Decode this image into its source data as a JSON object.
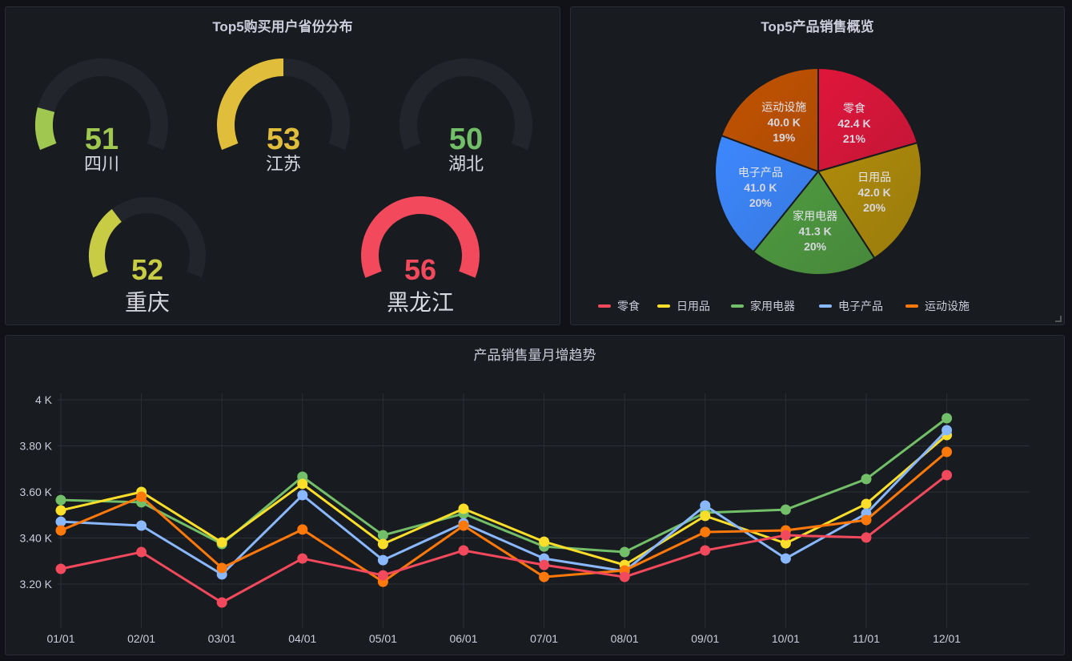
{
  "gauge_panel": {
    "title": "Top5购买用户省份分布",
    "min": 50,
    "max": 56,
    "gauges": [
      {
        "label": "四川",
        "value": "51",
        "color": "#a0c851"
      },
      {
        "label": "江苏",
        "value": "53",
        "color": "#e0bd3a"
      },
      {
        "label": "湖北",
        "value": "50",
        "color": "#73bf69"
      },
      {
        "label": "重庆",
        "value": "52",
        "color": "#c8cc45"
      },
      {
        "label": "黑龙江",
        "value": "56",
        "color": "#f2495c"
      }
    ]
  },
  "pie_panel": {
    "title": "Top5产品销售概览",
    "chart_data": {
      "type": "pie",
      "title": "Top5产品销售概览",
      "slices": [
        {
          "label": "零食",
          "value": 42400,
          "display": "42.4 K",
          "percent": "21%",
          "color": "#f2495c",
          "fill": "#e0163b"
        },
        {
          "label": "日用品",
          "value": 42000,
          "display": "42.0 K",
          "percent": "20%",
          "color": "#fade2a",
          "fill": "#b08c0a"
        },
        {
          "label": "家用电器",
          "value": 41300,
          "display": "41.3 K",
          "percent": "20%",
          "color": "#73bf69",
          "fill": "#4f9b40"
        },
        {
          "label": "电子产品",
          "value": 41000,
          "display": "41.0 K",
          "percent": "20%",
          "color": "#8ab8ff",
          "fill": "#3d88ff"
        },
        {
          "label": "运动设施",
          "value": 40000,
          "display": "40.0 K",
          "percent": "19%",
          "color": "#ff780a",
          "fill": "#c45300"
        }
      ],
      "legend_placement": "bottom"
    }
  },
  "line_panel": {
    "title": "产品销售量月增趋势",
    "chart_data": {
      "type": "line",
      "title": "产品销售量月增趋势",
      "x": [
        "01/01",
        "02/01",
        "03/01",
        "04/01",
        "05/01",
        "06/01",
        "07/01",
        "08/01",
        "09/01",
        "10/01",
        "11/01",
        "12/01"
      ],
      "ylim": [
        3000,
        4000
      ],
      "yticks": [
        {
          "v": 4000,
          "label": "4 K"
        },
        {
          "v": 3800,
          "label": "3.80 K"
        },
        {
          "v": 3600,
          "label": "3.60 K"
        },
        {
          "v": 3400,
          "label": "3.40 K"
        },
        {
          "v": 3200,
          "label": "3.20 K"
        }
      ],
      "grid": true,
      "series": [
        {
          "name": "家用电器",
          "color": "#73bf69",
          "values": [
            3565,
            3555,
            3374,
            3666,
            3412,
            3506,
            3363,
            3339,
            3510,
            3523,
            3656,
            3920
          ]
        },
        {
          "name": "日用品",
          "color": "#fade2a",
          "values": [
            3520,
            3600,
            3381,
            3635,
            3374,
            3527,
            3384,
            3283,
            3496,
            3377,
            3548,
            3847
          ]
        },
        {
          "name": "电子产品",
          "color": "#8ab8ff",
          "values": [
            3471,
            3454,
            3242,
            3586,
            3304,
            3464,
            3311,
            3256,
            3541,
            3311,
            3506,
            3868
          ]
        },
        {
          "name": "运动设施",
          "color": "#ff780a",
          "values": [
            3433,
            3579,
            3270,
            3437,
            3210,
            3454,
            3231,
            3259,
            3426,
            3433,
            3478,
            3774
          ]
        },
        {
          "name": "零食",
          "color": "#f2495c",
          "values": [
            3266,
            3339,
            3120,
            3311,
            3238,
            3346,
            3283,
            3231,
            3346,
            3412,
            3402,
            3673
          ]
        }
      ]
    }
  }
}
